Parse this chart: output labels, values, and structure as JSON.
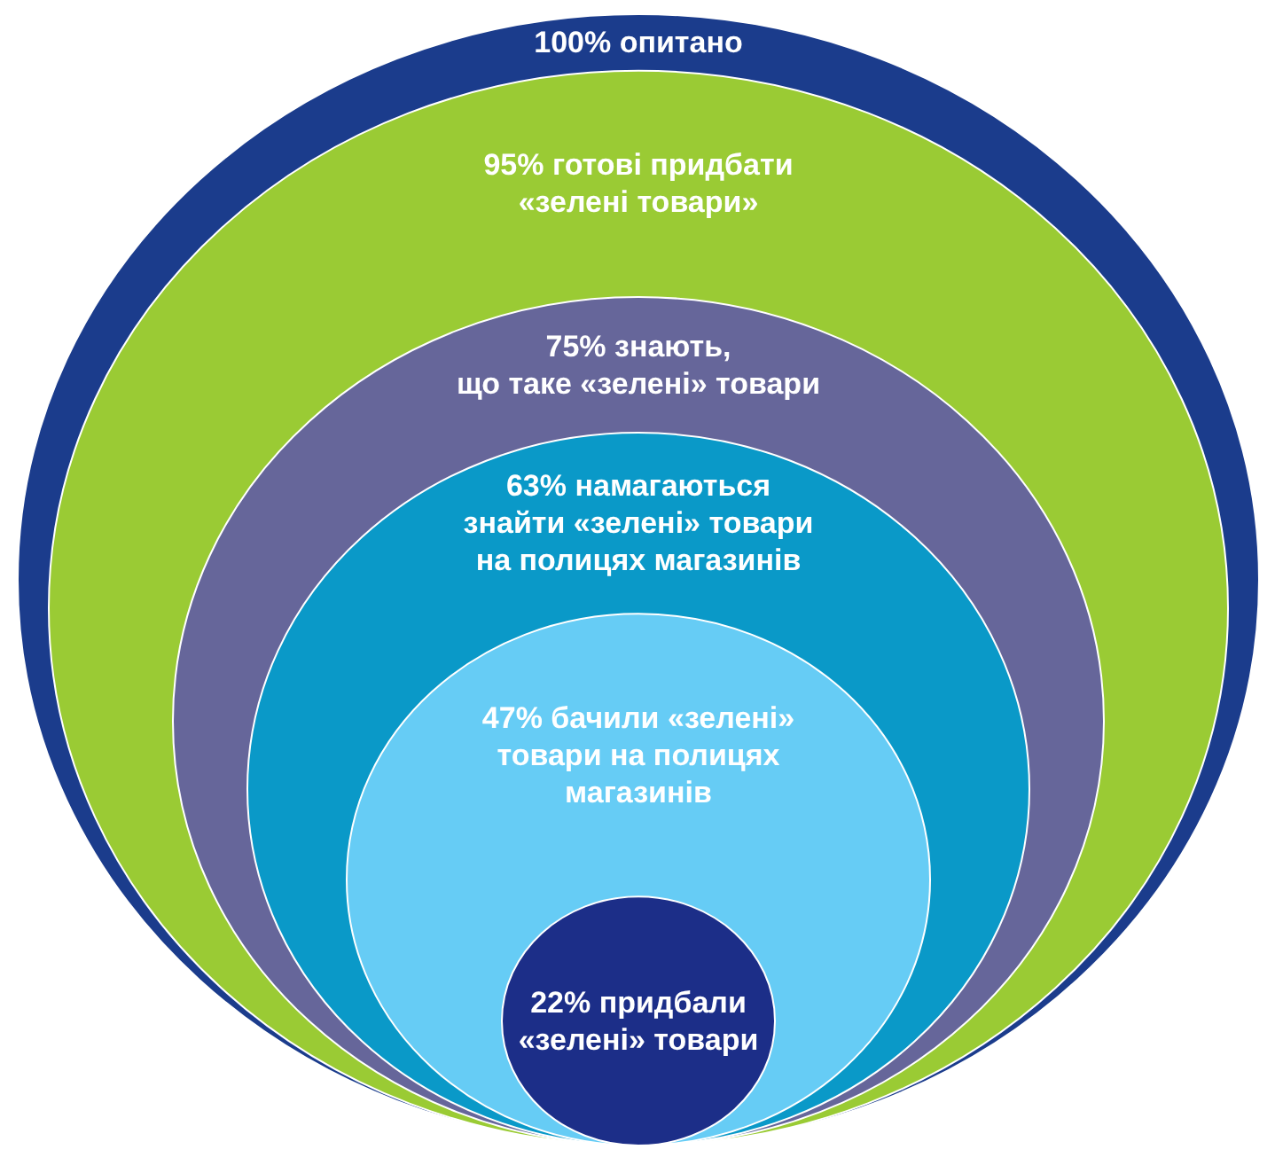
{
  "chart_data": {
    "type": "other",
    "categories": [
      "опитано",
      "готові придбати\n«зелені товари»",
      "знають,\nщо таке «зелені» товари",
      "намагаються\nзнайти «зелені» товари\nна полицях магазинів",
      "бачили «зелені»\nтовари на полицях\nмагазинів",
      "придбали\n«зелені» товари"
    ],
    "values": [
      100,
      95,
      75,
      63,
      47,
      22
    ],
    "value_labels": [
      "100%",
      "95%",
      "75%",
      "63%",
      "47%",
      "22%"
    ],
    "colors": [
      "#1b3c8c",
      "#9acb34",
      "#66669a",
      "#0a99c8",
      "#66ccf5",
      "#1c2e88"
    ]
  }
}
